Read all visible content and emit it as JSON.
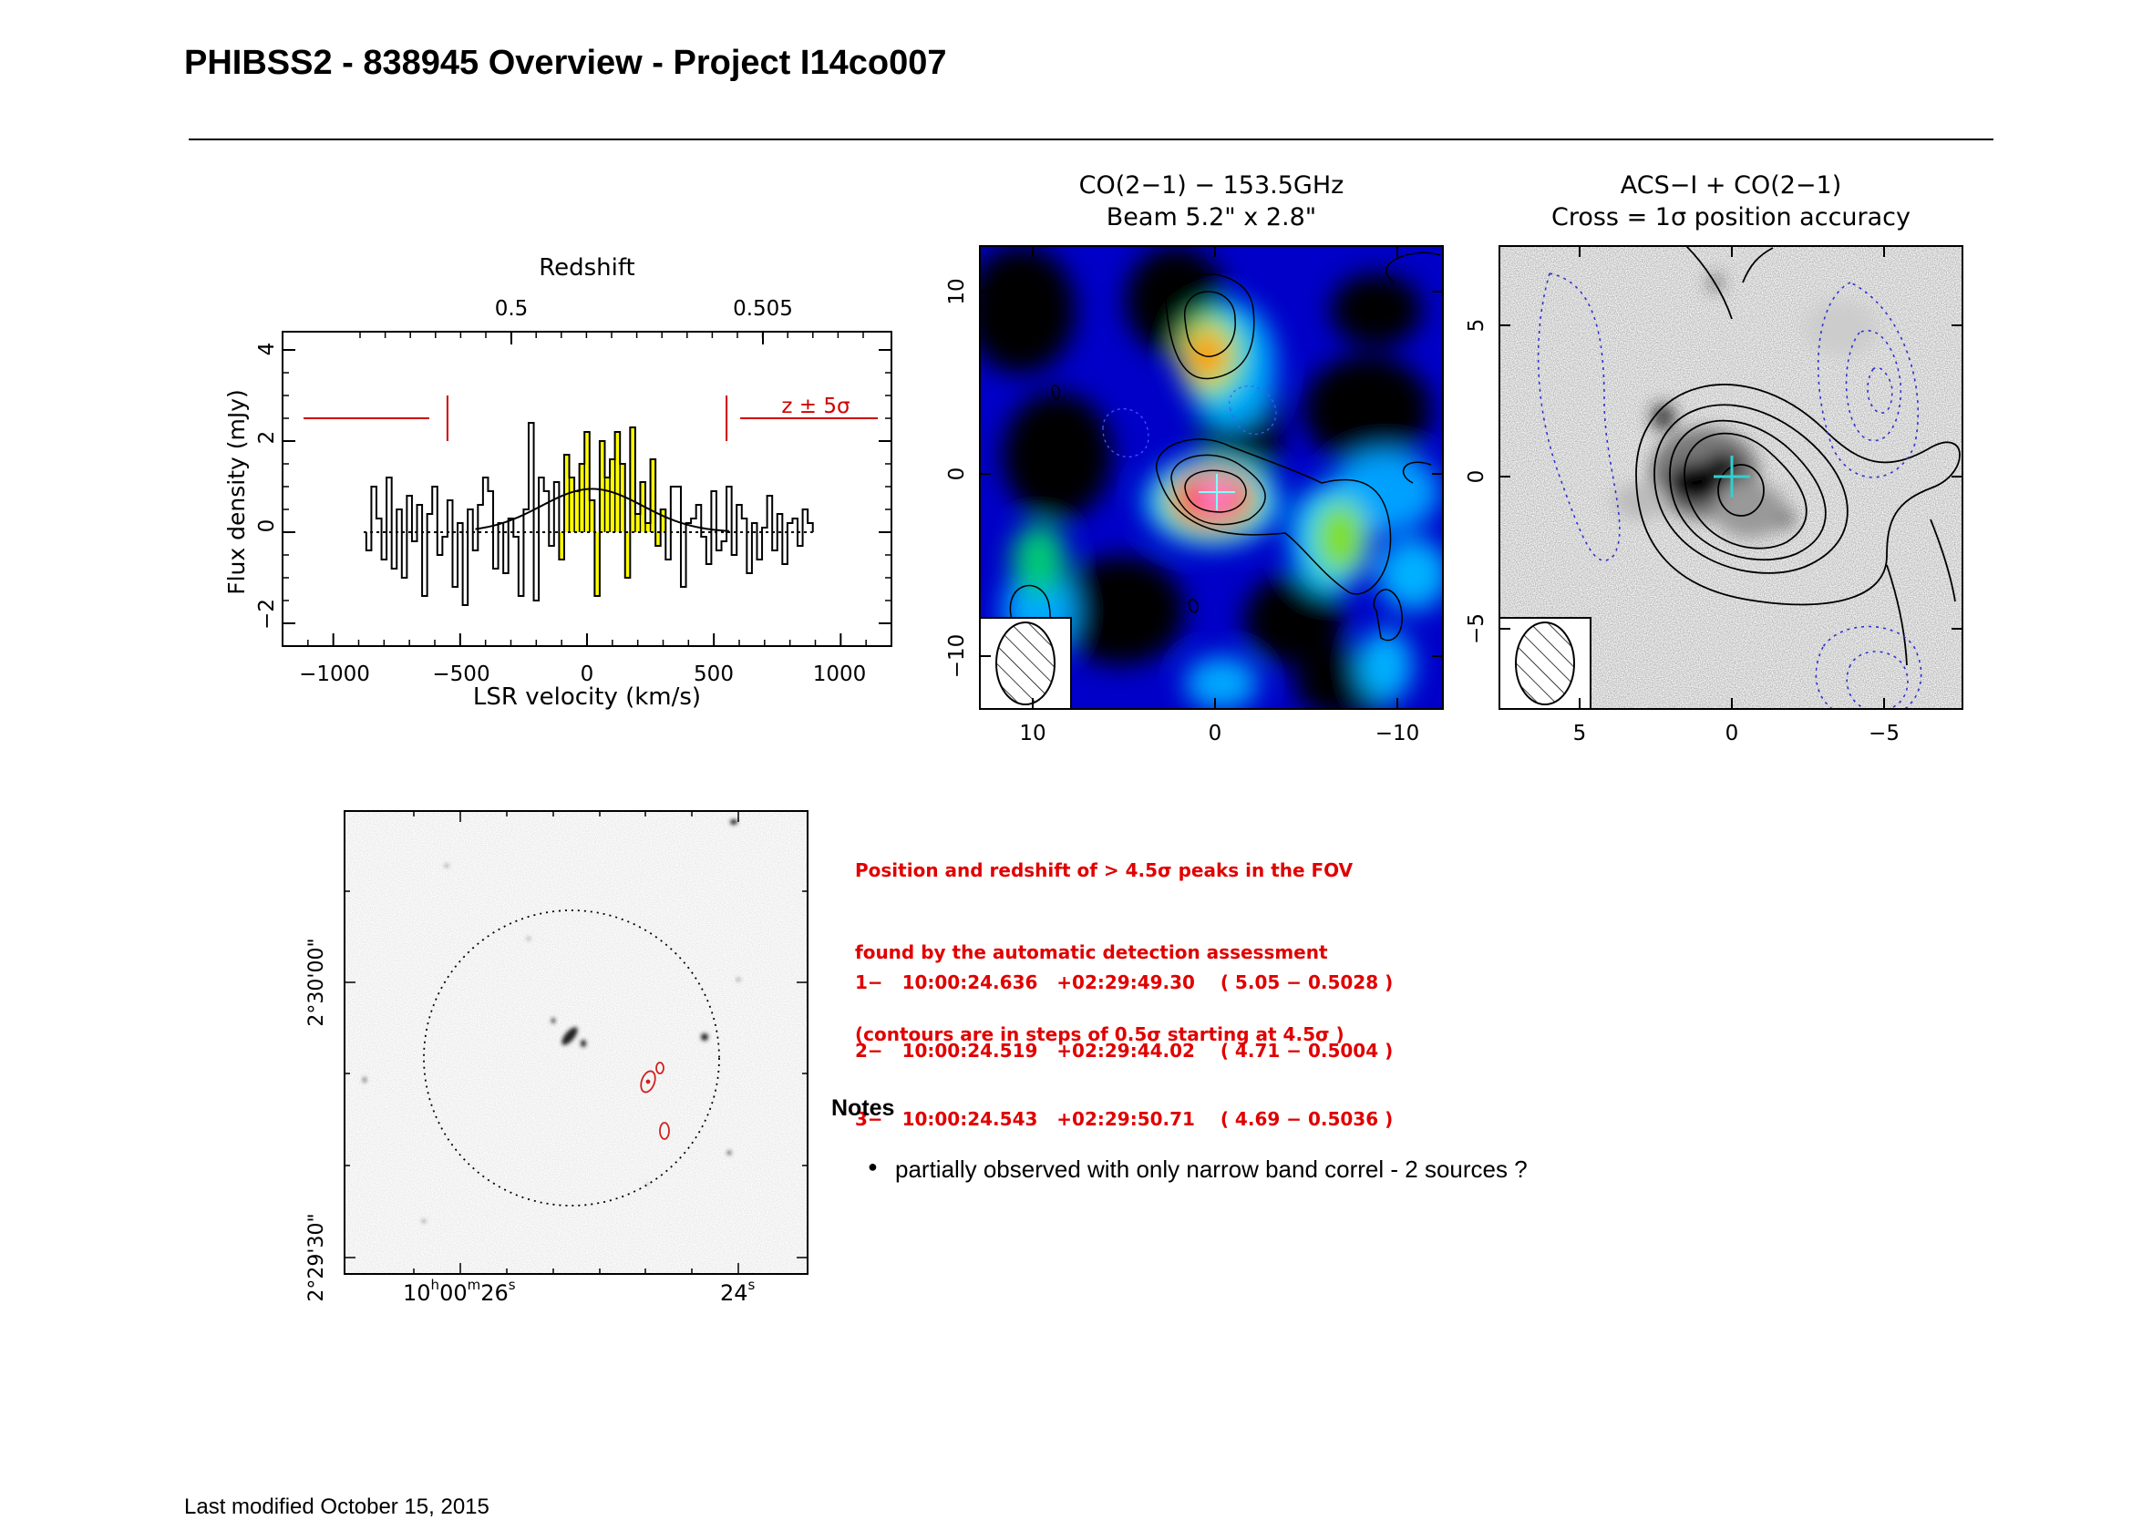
{
  "header": {
    "title": "PHIBSS2 - 838945 Overview - Project I14co007"
  },
  "spectrum": {
    "title": "Redshift",
    "xlabel": "LSR velocity (km/s)",
    "ylabel": "Flux density (mJy)",
    "redshift_ticks": [
      "0.5",
      "0.505"
    ],
    "z_label": "z ± 5σ",
    "x_ticks": [
      "−1000",
      "−500",
      "0",
      "500",
      "1000"
    ],
    "y_ticks": [
      "−2",
      "0",
      "2",
      "4"
    ]
  },
  "co_map": {
    "title1": "CO(2−1) − 153.5GHz",
    "title2": "Beam 5.2\" x 2.8\"",
    "x_ticks": [
      "10",
      "0",
      "−10"
    ],
    "y_ticks": [
      "−10",
      "0",
      "10"
    ]
  },
  "acs_map": {
    "title1": "ACS−I + CO(2−1)",
    "title2": "Cross = 1σ position accuracy",
    "x_ticks": [
      "5",
      "0",
      "−5"
    ],
    "y_ticks": [
      "−5",
      "0",
      "5"
    ]
  },
  "finder": {
    "ra_tick_left": "10",
    "ra_tick_left_h": "h",
    "ra_tick_left_m": "00",
    "ra_tick_left_mm": "m",
    "ra_tick_left_s": "26",
    "ra_tick_left_ss": "s",
    "ra_tick_right": "24",
    "ra_tick_right_ss": "s",
    "dec_tick_top": "2°30'00\"",
    "dec_tick_bottom": "2°29'30\""
  },
  "detection": {
    "line1": "Position and redshift of > 4.5σ peaks in the FOV",
    "line2": "found by the automatic detection assessment",
    "line3": "(contours are in steps of 0.5σ starting at 4.5σ )",
    "peaks": [
      "1−   10:00:24.636   +02:29:49.30    ( 5.05 − 0.5028 )",
      "2−   10:00:24.519   +02:29:44.02    ( 4.71 − 0.5004 )",
      "3−   10:00:24.543   +02:29:50.71    ( 4.69 − 0.5036 )"
    ]
  },
  "notes": {
    "heading": "Notes",
    "items": [
      "partially observed with only narrow band correl - 2 sources ?"
    ]
  },
  "footer": {
    "text": "Last modified October 15, 2015"
  },
  "chart_data": [
    {
      "type": "line",
      "title": "Redshift",
      "xlabel": "LSR velocity (km/s)",
      "ylabel": "Flux density (mJy)",
      "xlim": [
        -1200,
        1200
      ],
      "ylim": [
        -2.5,
        4.4
      ],
      "line_window_kms": [
        -100,
        300
      ],
      "z5sigma_bounds_kms": [
        -550,
        550
      ],
      "series": [
        {
          "kind": "histogram",
          "x": [
            -860,
            -840,
            -820,
            -800,
            -780,
            -760,
            -740,
            -720,
            -700,
            -680,
            -660,
            -640,
            -620,
            -600,
            -580,
            -560,
            -540,
            -520,
            -500,
            -480,
            -460,
            -440,
            -420,
            -400,
            -380,
            -360,
            -340,
            -320,
            -300,
            -280,
            -260,
            -240,
            -220,
            -200,
            -180,
            -160,
            -140,
            -120,
            -100,
            -80,
            -60,
            -40,
            -20,
            0,
            20,
            40,
            60,
            80,
            100,
            120,
            140,
            160,
            180,
            200,
            220,
            240,
            260,
            280,
            300,
            320,
            340,
            360,
            380,
            400,
            420,
            440,
            460,
            480,
            500,
            520,
            540,
            560,
            580,
            600,
            620,
            640,
            660,
            680,
            700,
            720,
            740,
            760,
            780,
            800,
            820,
            840,
            860,
            880
          ],
          "y": [
            -0.4,
            1.0,
            0.3,
            -0.6,
            1.2,
            -0.8,
            0.5,
            -1.0,
            0.8,
            -0.2,
            0.6,
            -1.4,
            0.4,
            1.0,
            -0.5,
            -0.1,
            0.7,
            -1.2,
            0.2,
            -1.6,
            0.5,
            -0.4,
            0.6,
            1.2,
            0.9,
            -0.8,
            0.2,
            -0.9,
            0.3,
            -0.1,
            -1.4,
            0.5,
            2.4,
            -1.5,
            1.2,
            0.9,
            -0.3,
            1.1,
            -0.6,
            1.7,
            1.2,
            0.9,
            1.5,
            2.2,
            0.7,
            -1.4,
            2.0,
            1.2,
            1.6,
            2.2,
            1.5,
            -1.0,
            2.3,
            0.4,
            1.1,
            0.2,
            1.6,
            -0.3,
            0.5,
            -0.6,
            1.0,
            1.0,
            -1.2,
            0.2,
            0.3,
            0.6,
            -0.1,
            -0.7,
            0.9,
            -0.4,
            -0.2,
            1.0,
            -0.5,
            0.6,
            0.3,
            -0.9,
            0.2,
            -0.6,
            0.1,
            0.8,
            -0.4,
            0.4,
            -0.7,
            0.2,
            0.3,
            -0.3,
            0.5,
            0.2
          ]
        },
        {
          "kind": "gaussian_fit",
          "amplitude_mJy": 0.95,
          "center_kms": 20,
          "sigma_kms": 200
        }
      ]
    }
  ]
}
